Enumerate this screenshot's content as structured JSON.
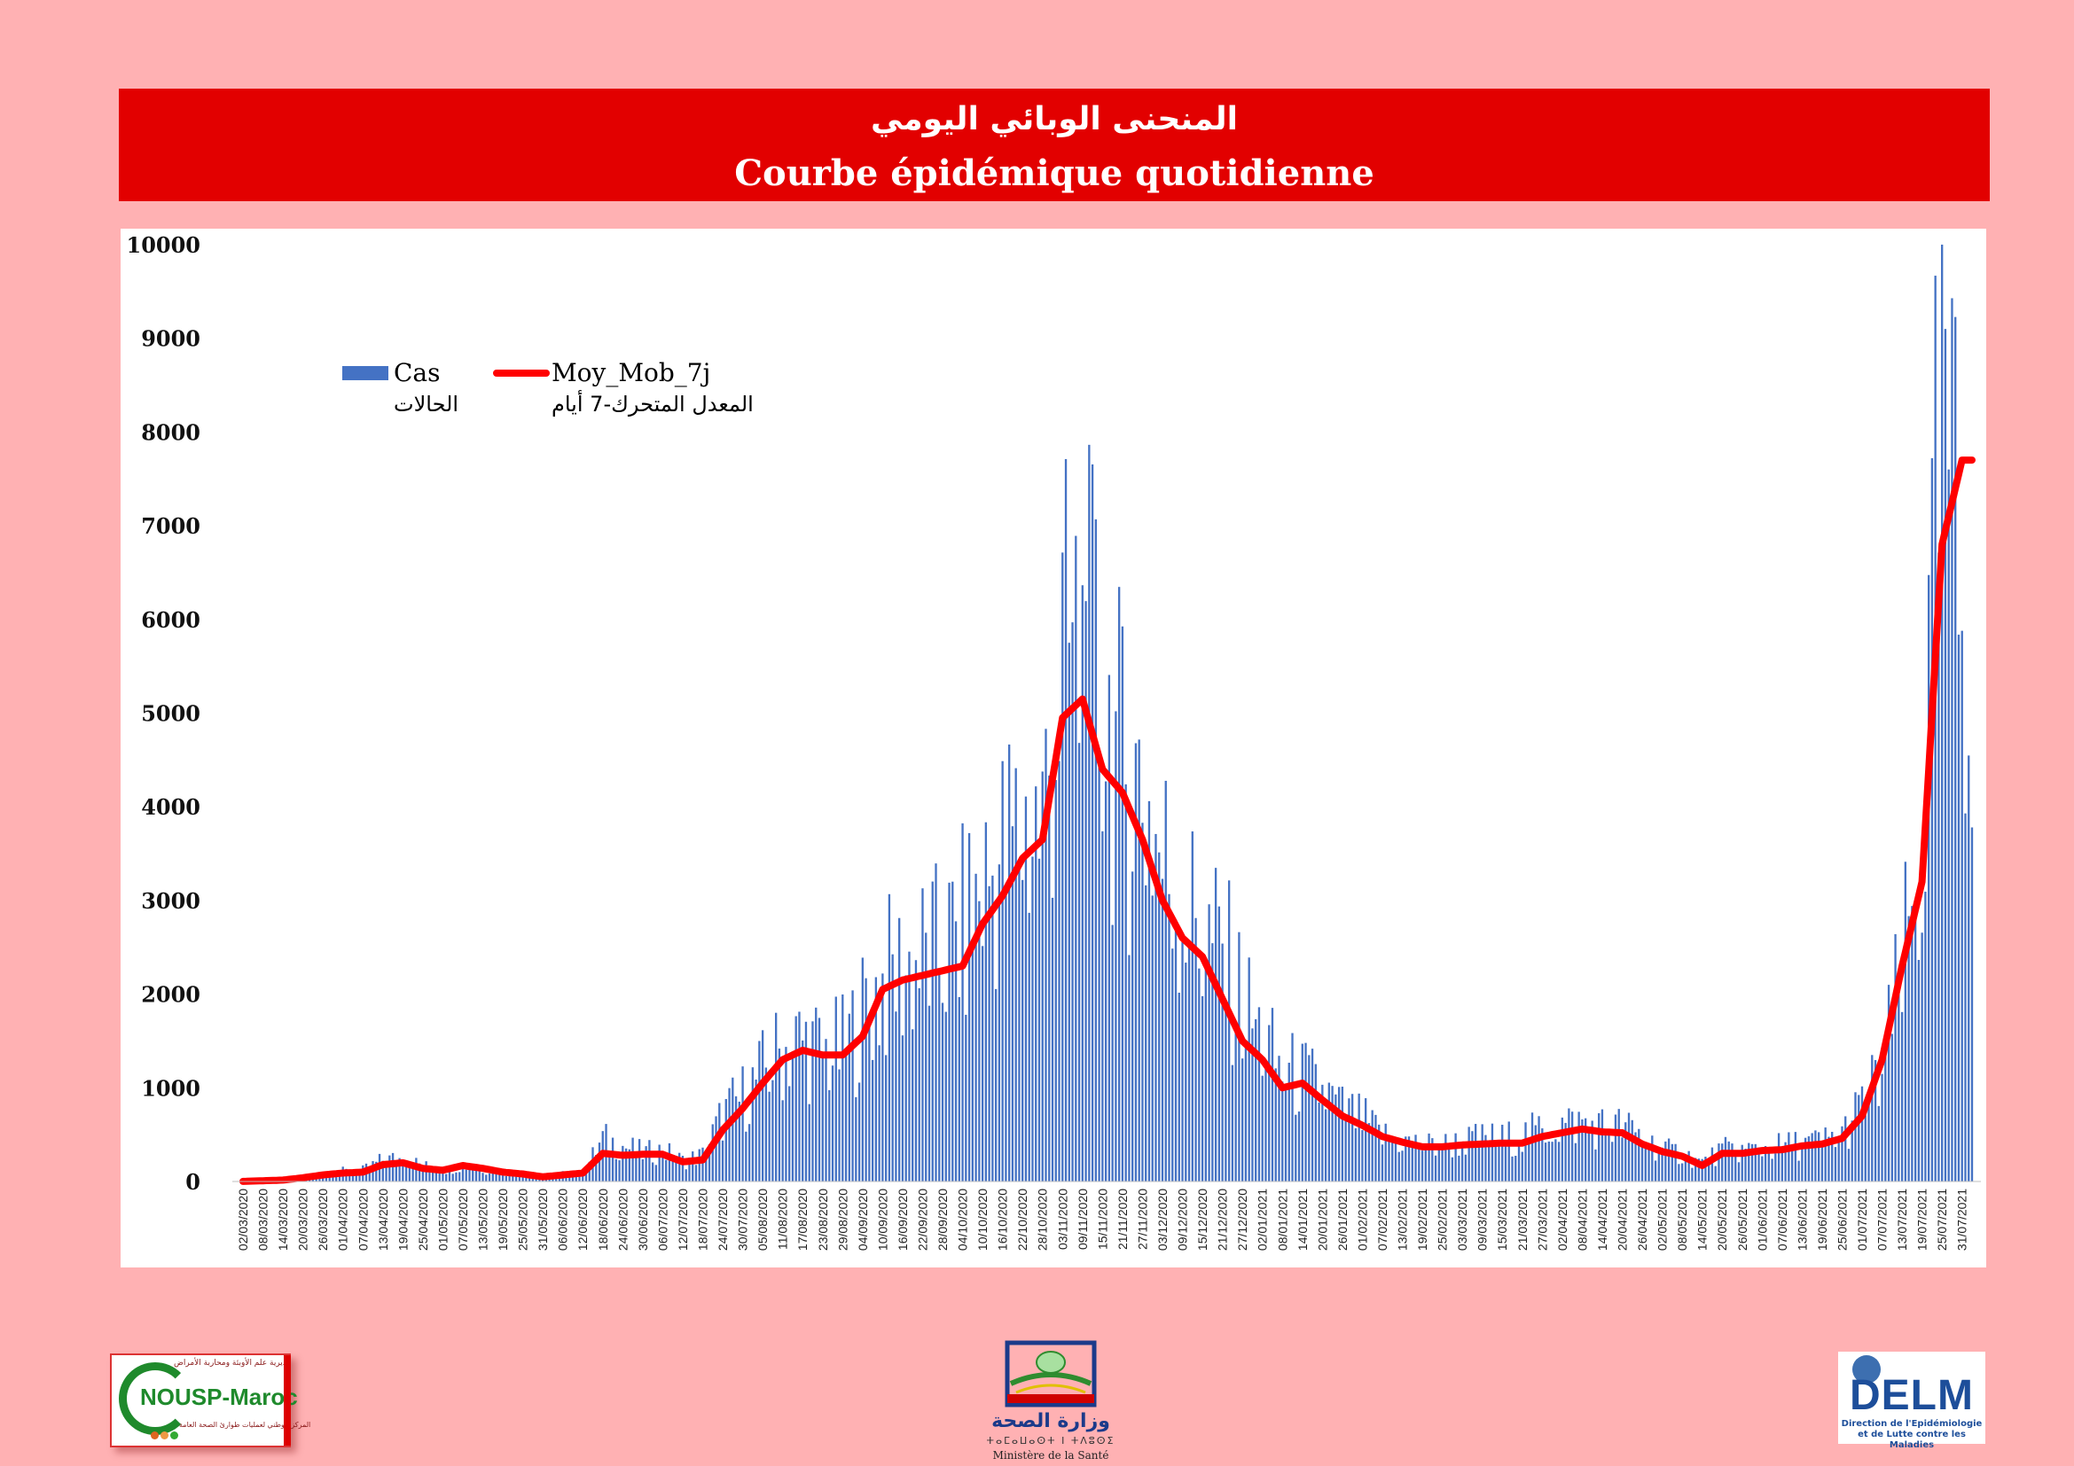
{
  "header": {
    "title_ar": "المنحنى الوبائي اليومي",
    "title_fr": "Courbe épidémique quotidienne"
  },
  "chart_data": {
    "type": "bar",
    "overlay_type": "line",
    "ylim": [
      0,
      10000
    ],
    "y_ticks": [
      0,
      1000,
      2000,
      3000,
      4000,
      5000,
      6000,
      7000,
      8000,
      9000,
      10000
    ],
    "grid": false,
    "legend_position": "top-left",
    "x_tick_labels": [
      "02/03/2020",
      "08/03/2020",
      "14/03/2020",
      "20/03/2020",
      "26/03/2020",
      "01/04/2020",
      "07/04/2020",
      "13/04/2020",
      "19/04/2020",
      "25/04/2020",
      "01/05/2020",
      "07/05/2020",
      "13/05/2020",
      "19/05/2020",
      "25/05/2020",
      "31/05/2020",
      "06/06/2020",
      "12/06/2020",
      "18/06/2020",
      "24/06/2020",
      "30/06/2020",
      "06/07/2020",
      "12/07/2020",
      "18/07/2020",
      "24/07/2020",
      "30/07/2020",
      "05/08/2020",
      "11/08/2020",
      "17/08/2020",
      "23/08/2020",
      "29/08/2020",
      "04/09/2020",
      "10/09/2020",
      "16/09/2020",
      "22/09/2020",
      "28/09/2020",
      "04/10/2020",
      "10/10/2020",
      "16/10/2020",
      "22/10/2020",
      "28/10/2020",
      "03/11/2020",
      "09/11/2020",
      "15/11/2020",
      "21/11/2020",
      "27/11/2020",
      "03/12/2020",
      "09/12/2020",
      "15/12/2020",
      "21/12/2020",
      "27/12/2020",
      "02/01/2021",
      "08/01/2021",
      "14/01/2021",
      "20/01/2021",
      "26/01/2021",
      "01/02/2021",
      "07/02/2021",
      "13/02/2021",
      "19/02/2021",
      "25/02/2021",
      "03/03/2021",
      "09/03/2021",
      "15/03/2021",
      "21/03/2021",
      "27/03/2021",
      "02/04/2021",
      "08/04/2021",
      "14/04/2021",
      "20/04/2021",
      "26/04/2021",
      "02/05/2021",
      "08/05/2021",
      "14/05/2021",
      "20/05/2021",
      "26/05/2021",
      "01/06/2021",
      "07/06/2021",
      "13/06/2021",
      "19/06/2021",
      "25/06/2021",
      "01/07/2021",
      "07/07/2021",
      "13/07/2021",
      "19/07/2021",
      "25/07/2021",
      "31/07/2021"
    ],
    "series": [
      {
        "name": "Cas",
        "name_ar": "الحالات",
        "type": "bar",
        "color": "#4472c4",
        "values_every_6_days": [
          1,
          10,
          15,
          50,
          90,
          110,
          120,
          230,
          250,
          170,
          120,
          170,
          130,
          100,
          80,
          60,
          80,
          90,
          450,
          380,
          300,
          330,
          220,
          280,
          700,
          900,
          1150,
          1400,
          1500,
          1350,
          1400,
          1750,
          2100,
          2250,
          2350,
          2400,
          2650,
          3100,
          3450,
          3750,
          3800,
          5500,
          5600,
          5200,
          4300,
          4200,
          3400,
          3000,
          2600,
          2400,
          1900,
          1500,
          1150,
          1100,
          950,
          750,
          650,
          480,
          430,
          380,
          380,
          420,
          450,
          450,
          480,
          550,
          600,
          620,
          580,
          580,
          480,
          330,
          300,
          200,
          330,
          330,
          350,
          370,
          400,
          420,
          500,
          800,
          1150,
          2200,
          3300,
          8500,
          6000
        ],
        "peaks": [
          {
            "date": "10/11/2020",
            "value": 6195
          },
          {
            "date": "28/07/2021",
            "value": 9428
          }
        ]
      },
      {
        "name": "Moy_Mob_7j",
        "name_ar": "المعدل المتحرك-7 أيام",
        "type": "line",
        "color": "#ff0000",
        "values_every_6_days": [
          1,
          8,
          15,
          40,
          70,
          90,
          100,
          180,
          200,
          140,
          120,
          170,
          140,
          100,
          80,
          50,
          70,
          90,
          300,
          280,
          290,
          290,
          210,
          230,
          550,
          780,
          1050,
          1300,
          1400,
          1350,
          1350,
          1550,
          2050,
          2150,
          2200,
          2250,
          2300,
          2750,
          3050,
          3450,
          3650,
          4950,
          5150,
          4400,
          4150,
          3650,
          3000,
          2600,
          2400,
          1950,
          1500,
          1300,
          1000,
          1050,
          870,
          700,
          600,
          480,
          420,
          370,
          370,
          390,
          400,
          410,
          410,
          480,
          520,
          560,
          530,
          520,
          400,
          320,
          270,
          170,
          300,
          300,
          330,
          340,
          380,
          400,
          460,
          700,
          1300,
          2300,
          3200,
          6800,
          7700
        ]
      }
    ]
  },
  "logos": {
    "left": {
      "name": "NOUSP-Maroc",
      "text_ar_top": "مديرية علم الأوبئة ومحاربة الأمراض",
      "text_ar_bottom": "المركز الوطني لعمليات طوارئ الصحة العامة"
    },
    "center": {
      "text_ar": "وزارة الصحة",
      "text_tifinagh": "ⵜⴰⵎⴰⵡⴰⵙⵜ ⵏ ⵜⴷⵓⵙⵉ",
      "text_fr": "Ministère de la Santé"
    },
    "right": {
      "name": "DELM",
      "subtitle_line1": "Direction de l'Epidémiologie",
      "subtitle_line2": "et de Lutte contre les Maladies"
    }
  }
}
